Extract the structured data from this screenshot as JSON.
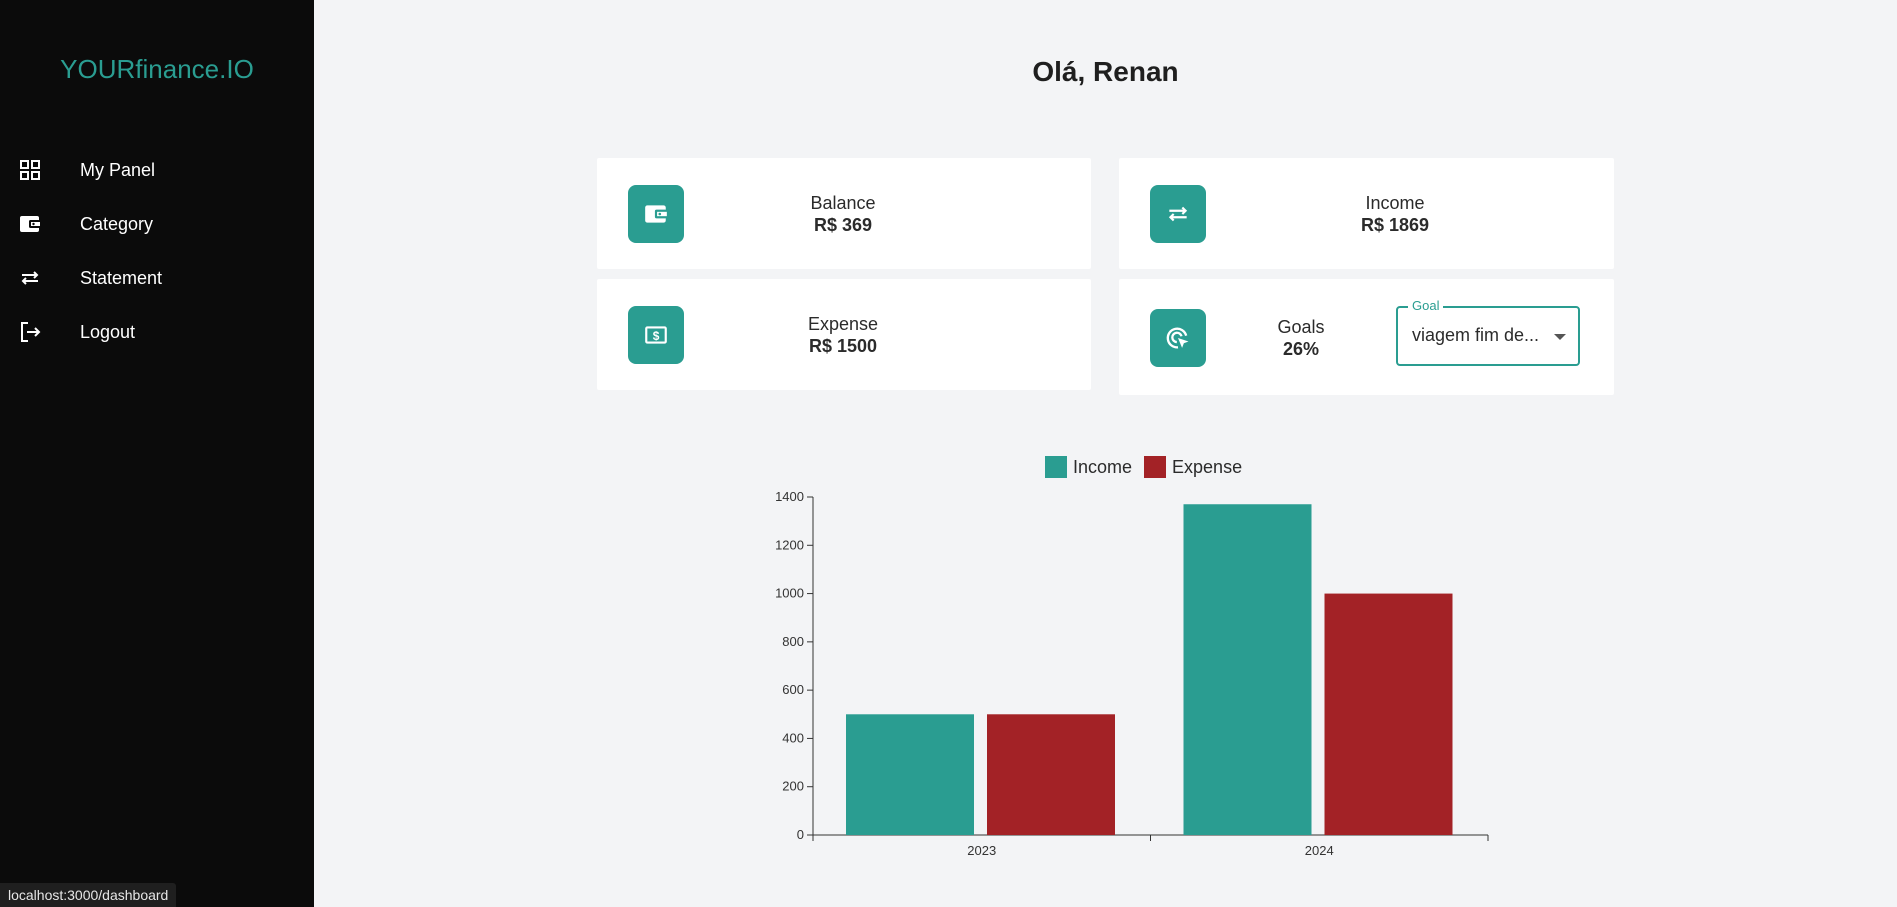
{
  "sidebar": {
    "logo": "YOURfinance.IO",
    "items": [
      {
        "label": "My Panel",
        "icon": "grid-icon"
      },
      {
        "label": "Category",
        "icon": "wallet-icon"
      },
      {
        "label": "Statement",
        "icon": "transfer-icon"
      },
      {
        "label": "Logout",
        "icon": "logout-icon"
      }
    ]
  },
  "status_url": "localhost:3000/dashboard",
  "greeting": "Olá, Renan",
  "cards": {
    "balance": {
      "label": "Balance",
      "value": "R$ 369",
      "icon": "wallet-icon"
    },
    "income": {
      "label": "Income",
      "value": "R$ 1869",
      "icon": "transfer-icon"
    },
    "expense": {
      "label": "Expense",
      "value": "R$ 1500",
      "icon": "money-icon"
    },
    "goals": {
      "label": "Goals",
      "value": "26%",
      "icon": "target-icon",
      "select_label": "Goal",
      "select_value": "viagem fim de..."
    }
  },
  "colors": {
    "accent": "#2a9d91",
    "expense": "#a32226",
    "sidebar": "#0b0b0b",
    "background": "#f3f4f6"
  },
  "chart_data": {
    "type": "bar",
    "categories": [
      "2023",
      "2024"
    ],
    "series": [
      {
        "name": "Income",
        "color": "#2a9d91",
        "values": [
          500,
          1370
        ]
      },
      {
        "name": "Expense",
        "color": "#a32226",
        "values": [
          500,
          1000
        ]
      }
    ],
    "ylim": [
      0,
      1400
    ],
    "yticks": [
      0,
      200,
      400,
      600,
      800,
      1000,
      1200,
      1400
    ],
    "legend": "top"
  }
}
